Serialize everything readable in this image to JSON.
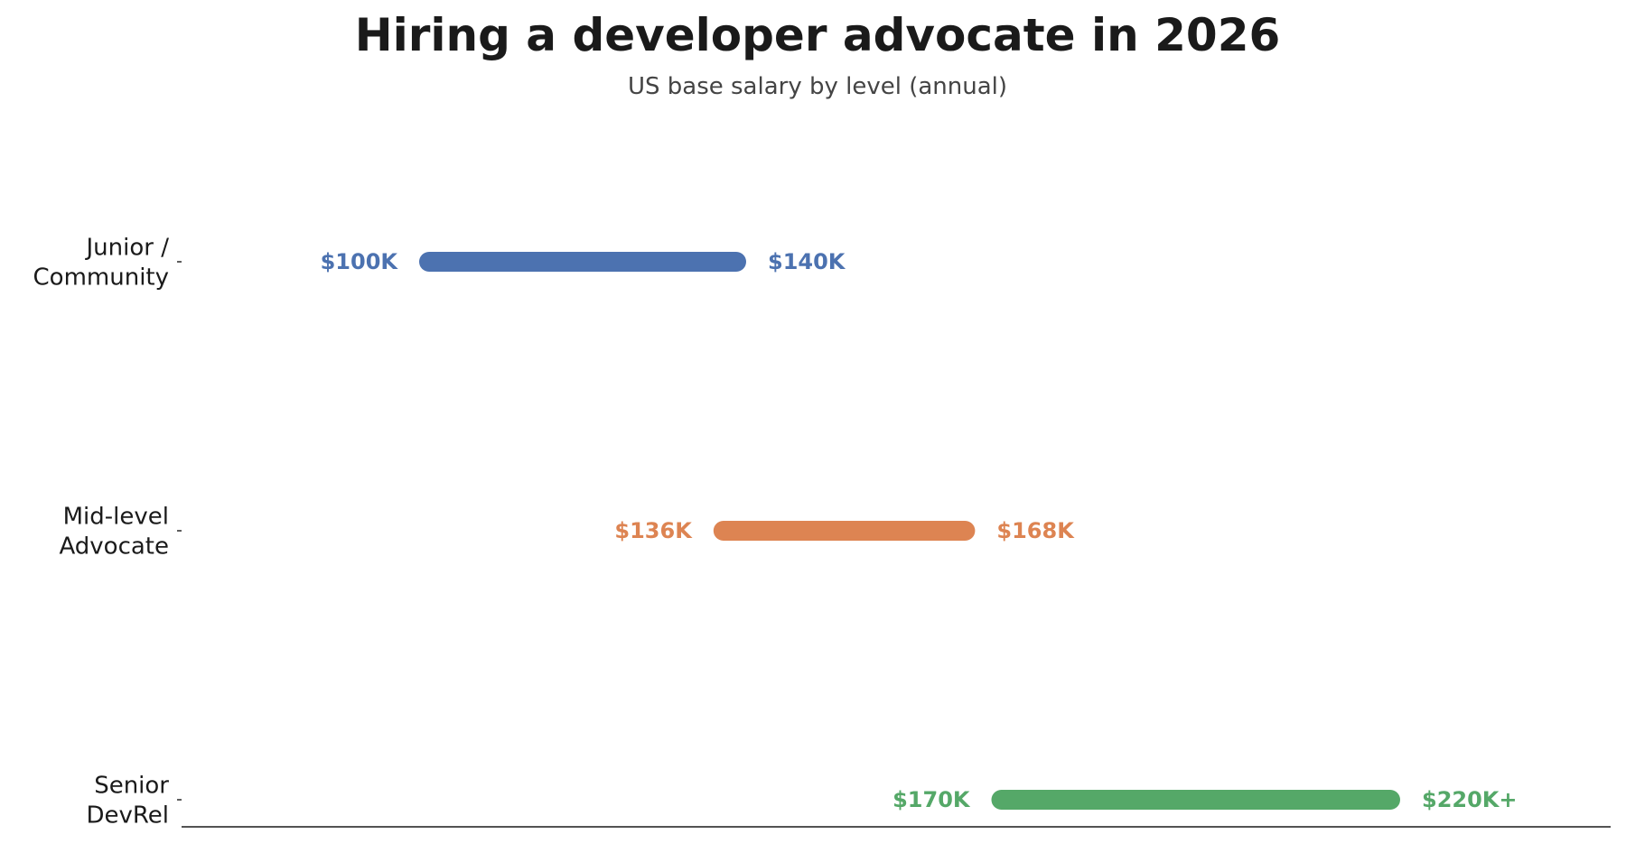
{
  "chart_data": {
    "type": "bar",
    "title": "Hiring a developer advocate in 2026",
    "subtitle": "US base salary by level (annual)",
    "categories": [
      [
        "Junior /",
        "Community"
      ],
      [
        "Mid-level",
        "Advocate"
      ],
      [
        "Senior",
        "DevRel"
      ]
    ],
    "ranges": [
      {
        "low": 100,
        "high": 140,
        "low_label": "$100K",
        "high_label": "$140K",
        "color": "#4c72b0"
      },
      {
        "low": 136,
        "high": 168,
        "low_label": "$136K",
        "high_label": "$168K",
        "color": "#dd8452"
      },
      {
        "low": 170,
        "high": 220,
        "low_label": "$170K",
        "high_label": "$220K+",
        "color": "#55a868"
      }
    ],
    "x_unit": "thousand USD",
    "grid": false,
    "legend": "none"
  }
}
